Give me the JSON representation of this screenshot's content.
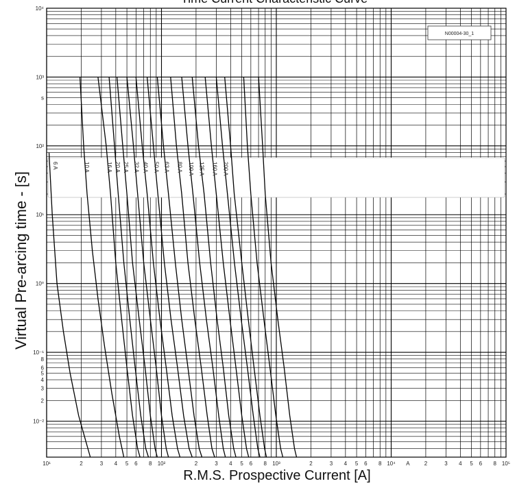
{
  "chart_data": {
    "type": "line",
    "title": "Time Current Characteristic Curve",
    "xlabel": "R.M.S. Prospective Current [A]",
    "ylabel": "Virtual Pre-arcing time - [s]",
    "x_scale": "log",
    "y_scale": "log",
    "xlim": [
      10,
      100000
    ],
    "ylim": [
      0.003,
      10000
    ],
    "grid": true,
    "chart_id": "N00004-30_1",
    "x_tick_labels": [
      {
        "v": 10,
        "t": "10¹"
      },
      {
        "v": 20,
        "t": "2"
      },
      {
        "v": 30,
        "t": "3"
      },
      {
        "v": 40,
        "t": "4"
      },
      {
        "v": 50,
        "t": "5"
      },
      {
        "v": 60,
        "t": "6"
      },
      {
        "v": 80,
        "t": "8"
      },
      {
        "v": 100,
        "t": "10²"
      },
      {
        "v": 200,
        "t": "2"
      },
      {
        "v": 300,
        "t": "3"
      },
      {
        "v": 400,
        "t": "4"
      },
      {
        "v": 500,
        "t": "5"
      },
      {
        "v": 600,
        "t": "6"
      },
      {
        "v": 800,
        "t": "8"
      },
      {
        "v": 1000,
        "t": "10³"
      },
      {
        "v": 2000,
        "t": "2"
      },
      {
        "v": 3000,
        "t": "3"
      },
      {
        "v": 4000,
        "t": "4"
      },
      {
        "v": 5000,
        "t": "5"
      },
      {
        "v": 6000,
        "t": "6"
      },
      {
        "v": 8000,
        "t": "8"
      },
      {
        "v": 10000,
        "t": "10⁴"
      },
      {
        "v": 14000,
        "t": "A"
      },
      {
        "v": 20000,
        "t": "2"
      },
      {
        "v": 30000,
        "t": "3"
      },
      {
        "v": 40000,
        "t": "4"
      },
      {
        "v": 50000,
        "t": "5"
      },
      {
        "v": 60000,
        "t": "6"
      },
      {
        "v": 80000,
        "t": "8"
      },
      {
        "v": 100000,
        "t": "10⁵"
      }
    ],
    "y_tick_labels": [
      {
        "v": 10000,
        "t": "10⁴"
      },
      {
        "v": 1000,
        "t": "10³"
      },
      {
        "v": 500,
        "t": "s"
      },
      {
        "v": 100,
        "t": "10²"
      },
      {
        "v": 10,
        "t": "10¹"
      },
      {
        "v": 1,
        "t": "10⁰"
      },
      {
        "v": 0.1,
        "t": "10⁻¹"
      },
      {
        "v": 0.08,
        "t": "8"
      },
      {
        "v": 0.06,
        "t": "6"
      },
      {
        "v": 0.05,
        "t": "5"
      },
      {
        "v": 0.04,
        "t": "4"
      },
      {
        "v": 0.03,
        "t": "3"
      },
      {
        "v": 0.02,
        "t": "2"
      },
      {
        "v": 0.01,
        "t": "10⁻²"
      }
    ],
    "series": [
      {
        "name": "6 A",
        "points": [
          [
            10.5,
            80
          ],
          [
            11.2,
            10
          ],
          [
            12.3,
            1
          ],
          [
            14,
            0.2
          ],
          [
            16,
            0.05
          ],
          [
            19,
            0.012
          ],
          [
            22,
            0.005
          ],
          [
            24,
            0.003
          ]
        ]
      },
      {
        "name": "10 A",
        "points": [
          [
            19.5,
            1000
          ],
          [
            21,
            100
          ],
          [
            22.5,
            20
          ],
          [
            25,
            3
          ],
          [
            28,
            0.6
          ],
          [
            32,
            0.12
          ],
          [
            37,
            0.025
          ],
          [
            43,
            0.006
          ],
          [
            47,
            0.003
          ]
        ]
      },
      {
        "name": "16 A",
        "points": [
          [
            28,
            1000
          ],
          [
            33,
            100
          ],
          [
            36,
            20
          ],
          [
            40,
            2
          ],
          [
            45,
            0.3
          ],
          [
            50,
            0.06
          ],
          [
            56,
            0.012
          ],
          [
            62,
            0.004
          ],
          [
            65,
            0.003
          ]
        ]
      },
      {
        "name": "20 A",
        "points": [
          [
            35,
            1000
          ],
          [
            39,
            100
          ],
          [
            42,
            20
          ],
          [
            47,
            2
          ],
          [
            53,
            0.3
          ],
          [
            59,
            0.06
          ],
          [
            66,
            0.012
          ],
          [
            73,
            0.004
          ],
          [
            77,
            0.003
          ]
        ]
      },
      {
        "name": "25 A",
        "points": [
          [
            41,
            1000
          ],
          [
            46,
            100
          ],
          [
            50,
            20
          ],
          [
            56,
            2
          ],
          [
            64,
            0.3
          ],
          [
            72,
            0.06
          ],
          [
            80,
            0.012
          ],
          [
            88,
            0.004
          ],
          [
            92,
            0.003
          ]
        ]
      },
      {
        "name": "32 A",
        "points": [
          [
            50,
            1000
          ],
          [
            57,
            100
          ],
          [
            62,
            20
          ],
          [
            70,
            2
          ],
          [
            80,
            0.3
          ],
          [
            90,
            0.06
          ],
          [
            100,
            0.012
          ],
          [
            110,
            0.004
          ],
          [
            115,
            0.003
          ]
        ]
      },
      {
        "name": "40 A",
        "points": [
          [
            60,
            1000
          ],
          [
            68,
            100
          ],
          [
            75,
            20
          ],
          [
            85,
            2
          ],
          [
            97,
            0.3
          ],
          [
            110,
            0.06
          ],
          [
            124,
            0.012
          ],
          [
            138,
            0.004
          ],
          [
            145,
            0.003
          ]
        ]
      },
      {
        "name": "50 A",
        "points": [
          [
            75,
            1000
          ],
          [
            85,
            100
          ],
          [
            93,
            20
          ],
          [
            106,
            2
          ],
          [
            121,
            0.3
          ],
          [
            138,
            0.06
          ],
          [
            156,
            0.012
          ],
          [
            174,
            0.004
          ],
          [
            185,
            0.003
          ]
        ]
      },
      {
        "name": "63 A",
        "points": [
          [
            92,
            1000
          ],
          [
            104,
            100
          ],
          [
            115,
            20
          ],
          [
            132,
            2
          ],
          [
            150,
            0.3
          ],
          [
            170,
            0.06
          ],
          [
            192,
            0.012
          ],
          [
            213,
            0.004
          ],
          [
            225,
            0.003
          ]
        ]
      },
      {
        "name": "80 A",
        "points": [
          [
            120,
            1000
          ],
          [
            135,
            100
          ],
          [
            150,
            20
          ],
          [
            170,
            2
          ],
          [
            195,
            0.3
          ],
          [
            222,
            0.06
          ],
          [
            250,
            0.012
          ],
          [
            275,
            0.004
          ],
          [
            290,
            0.003
          ]
        ]
      },
      {
        "name": "100 A",
        "points": [
          [
            150,
            1000
          ],
          [
            170,
            100
          ],
          [
            188,
            20
          ],
          [
            215,
            2
          ],
          [
            246,
            0.3
          ],
          [
            280,
            0.06
          ],
          [
            315,
            0.012
          ],
          [
            345,
            0.004
          ],
          [
            360,
            0.003
          ]
        ]
      },
      {
        "name": "125 A",
        "points": [
          [
            185,
            1000
          ],
          [
            210,
            100
          ],
          [
            235,
            20
          ],
          [
            268,
            2
          ],
          [
            305,
            0.3
          ],
          [
            345,
            0.06
          ],
          [
            385,
            0.012
          ],
          [
            425,
            0.004
          ],
          [
            445,
            0.003
          ]
        ]
      },
      {
        "name": "160 A",
        "points": [
          [
            240,
            1000
          ],
          [
            272,
            100
          ],
          [
            300,
            20
          ],
          [
            345,
            2
          ],
          [
            395,
            0.3
          ],
          [
            445,
            0.06
          ],
          [
            500,
            0.012
          ],
          [
            550,
            0.004
          ],
          [
            575,
            0.003
          ]
        ]
      },
      {
        "name": "200 A",
        "points": [
          [
            300,
            1000
          ],
          [
            340,
            100
          ],
          [
            375,
            20
          ],
          [
            432,
            2
          ],
          [
            495,
            0.3
          ],
          [
            560,
            0.06
          ],
          [
            630,
            0.012
          ],
          [
            690,
            0.004
          ],
          [
            720,
            0.003
          ]
        ]
      },
      {
        "name": "",
        "points": [
          [
            355,
            1000
          ],
          [
            400,
            100
          ],
          [
            430,
            20
          ],
          [
            500,
            2
          ],
          [
            570,
            0.3
          ],
          [
            640,
            0.06
          ],
          [
            720,
            0.012
          ],
          [
            790,
            0.004
          ],
          [
            820,
            0.003
          ]
        ]
      },
      {
        "name": "",
        "points": [
          [
            520,
            1000
          ],
          [
            560,
            100
          ],
          [
            600,
            20
          ],
          [
            680,
            2
          ],
          [
            780,
            0.3
          ],
          [
            880,
            0.06
          ],
          [
            990,
            0.012
          ],
          [
            1090,
            0.004
          ],
          [
            1140,
            0.003
          ]
        ]
      },
      {
        "name": "",
        "points": [
          [
            700,
            1000
          ],
          [
            760,
            100
          ],
          [
            800,
            20
          ],
          [
            900,
            2
          ],
          [
            1030,
            0.3
          ],
          [
            1170,
            0.06
          ],
          [
            1310,
            0.012
          ],
          [
            1440,
            0.004
          ],
          [
            1500,
            0.003
          ]
        ]
      }
    ]
  }
}
